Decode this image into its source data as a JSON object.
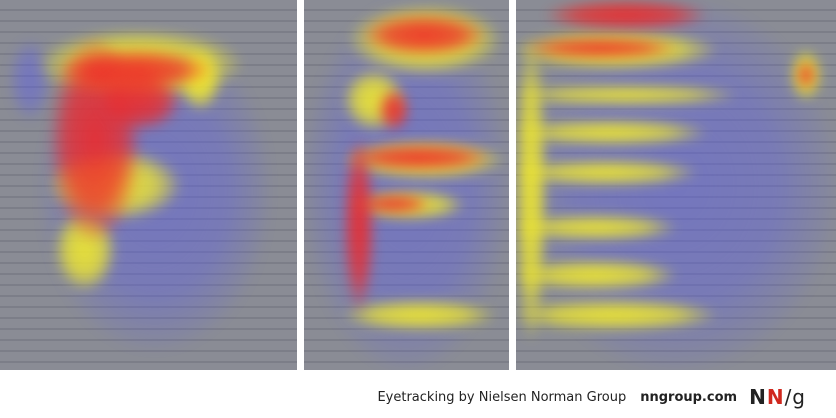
{
  "panels": [
    {
      "name": "heatmap-corporate-about-page"
    },
    {
      "name": "heatmap-ecommerce-product-page"
    },
    {
      "name": "heatmap-search-results-page"
    }
  ],
  "heat_colors": {
    "low": "#5a5cf0",
    "mid": "#f4ec2a",
    "high": "#ee2a2a"
  },
  "footer": {
    "credit": "Eyetracking by Nielsen Norman Group",
    "site": "nngroup.com",
    "logo": {
      "n1": "N",
      "n2": "N",
      "slash_g": "/g"
    }
  }
}
